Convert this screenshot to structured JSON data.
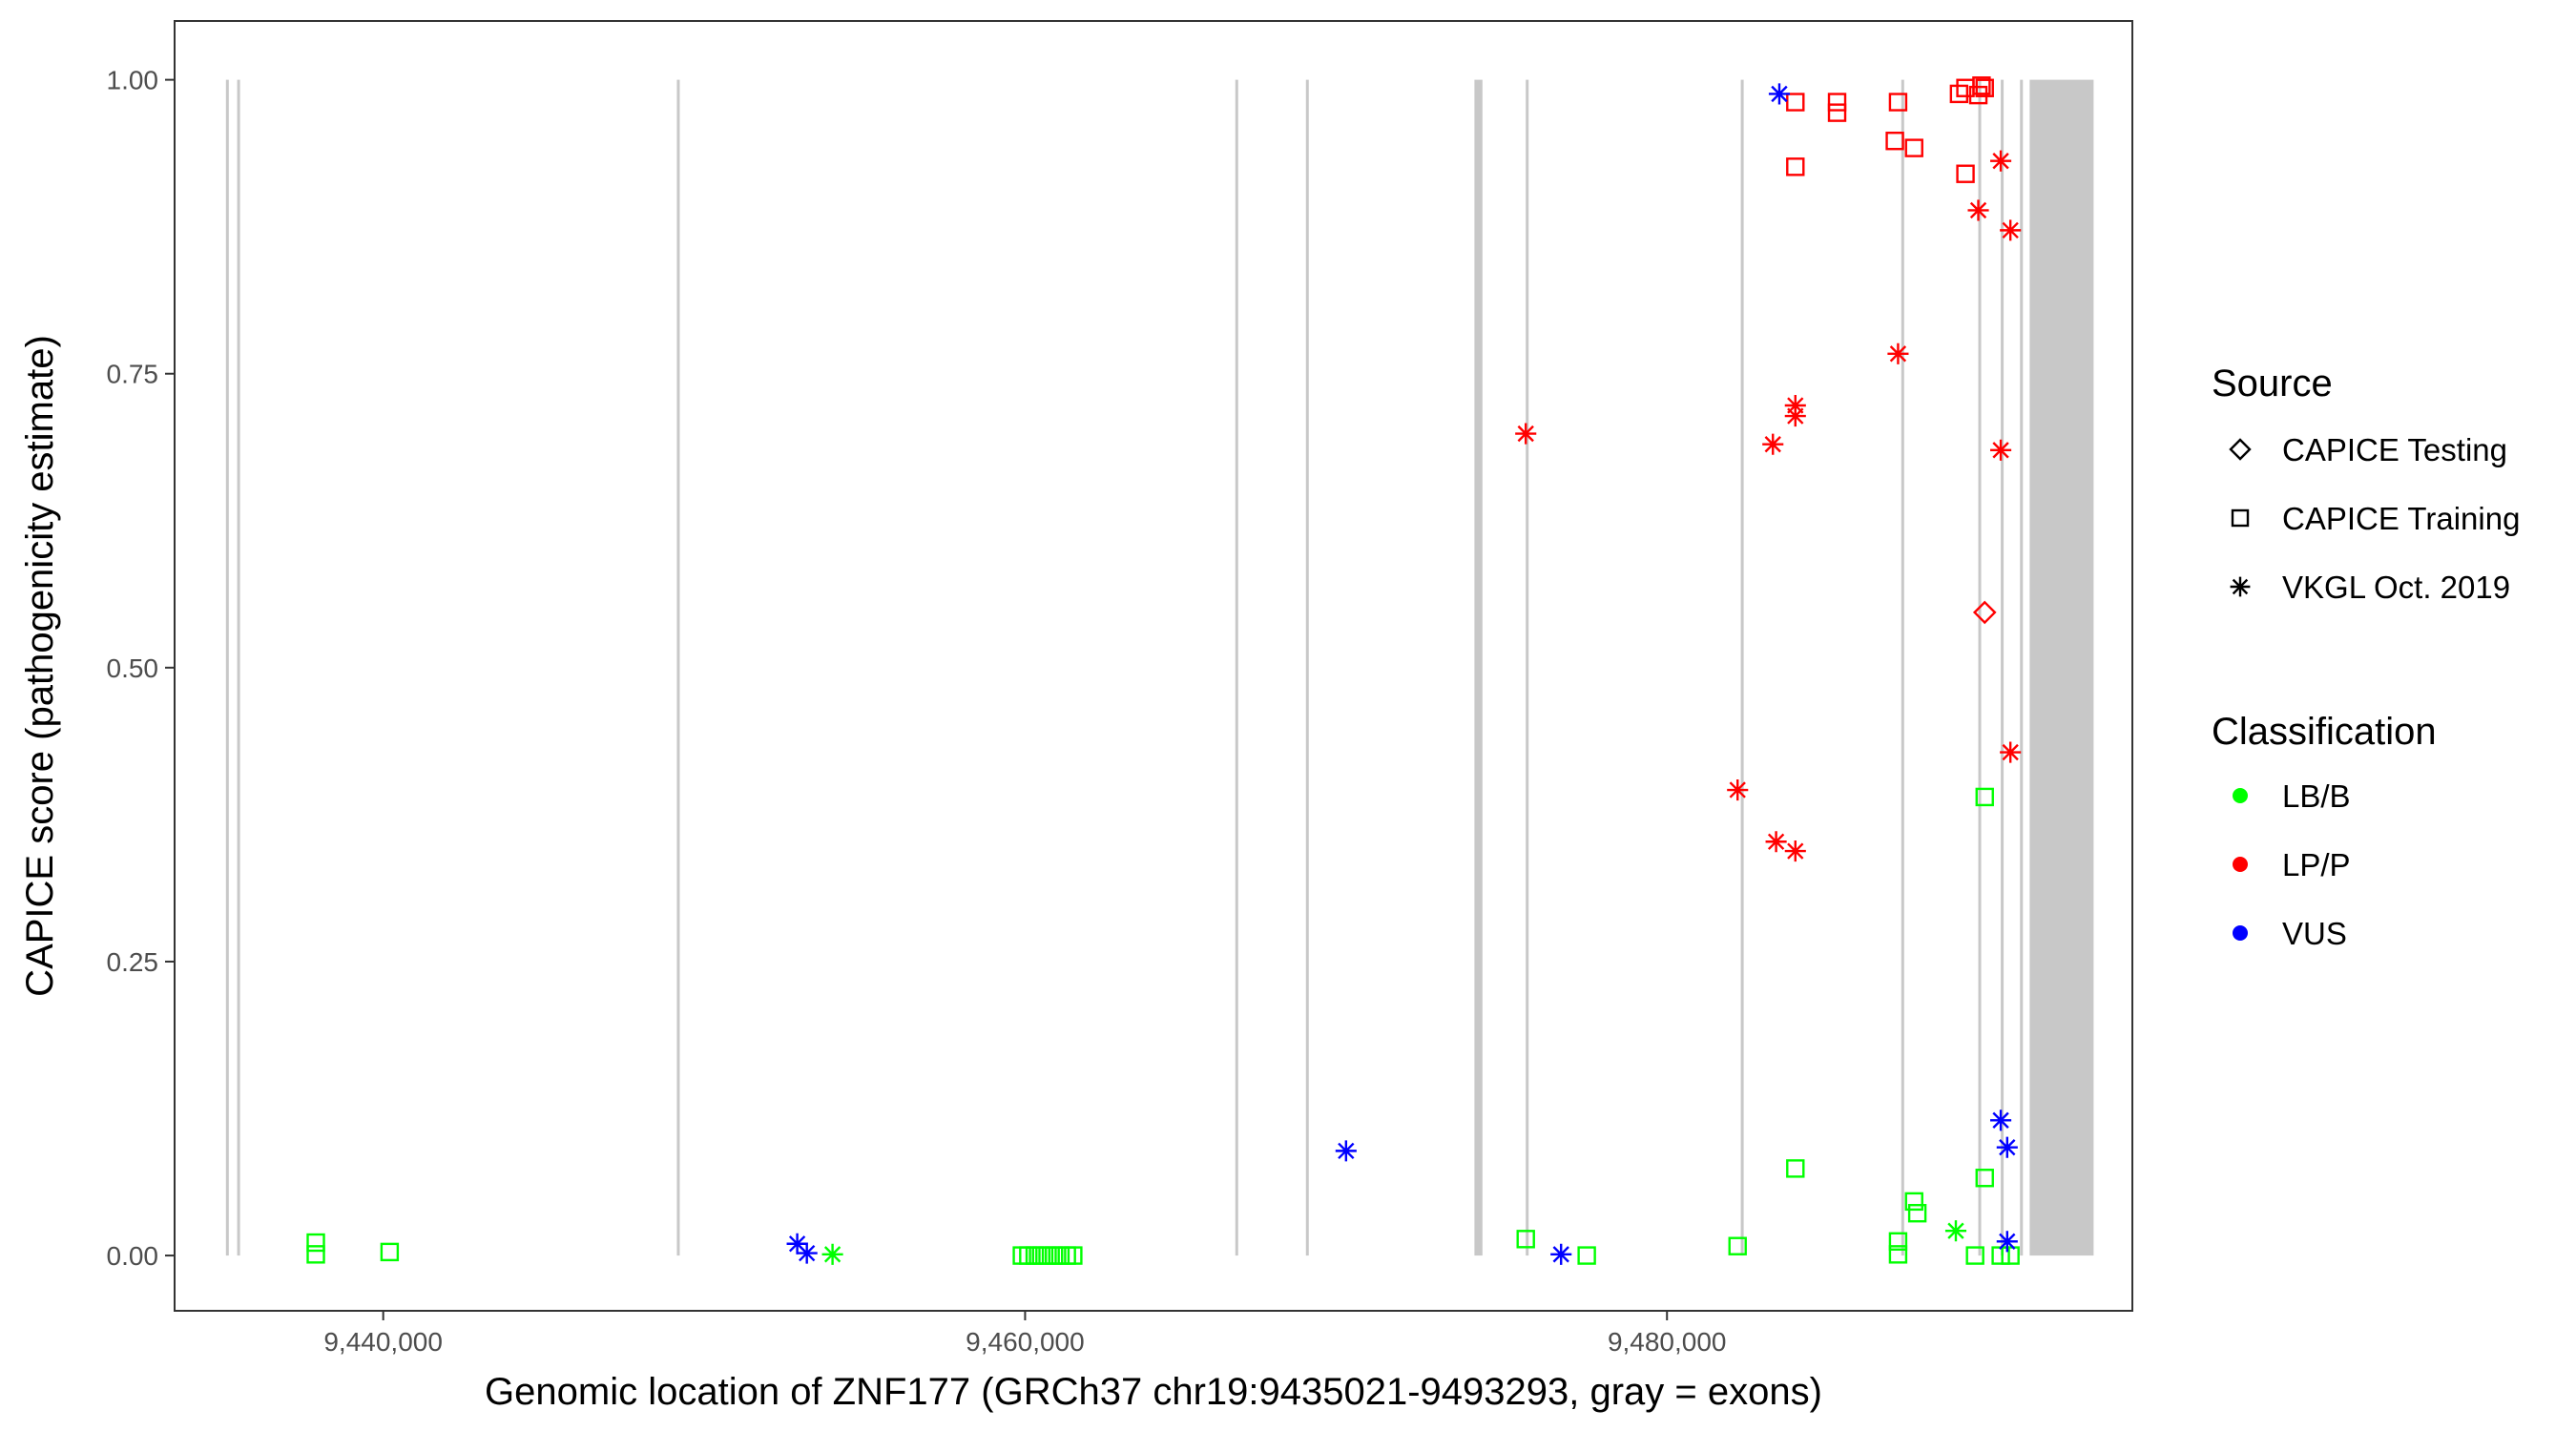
{
  "chart_data": {
    "type": "scatter",
    "title": "",
    "xlabel": "Genomic location of ZNF177 (GRCh37 chr19:9435021-9493293, gray = exons)",
    "ylabel": "CAPICE score (pathogenicity estimate)",
    "xlim": [
      9433500,
      9494500
    ],
    "ylim": [
      -0.047,
      1.05
    ],
    "x_ticks": [
      9440000,
      9460000,
      9480000
    ],
    "x_tick_labels": [
      "9,440,000",
      "9,460,000",
      "9,480,000"
    ],
    "y_ticks": [
      0,
      0.25,
      0.5,
      0.75,
      1.0
    ],
    "y_tick_labels": [
      "0.00",
      "0.25",
      "0.50",
      "0.75",
      "1.00"
    ],
    "grid": false,
    "exon_color": "#c8c8c8",
    "exons": [
      [
        9435100,
        9435160
      ],
      [
        9435450,
        9435510
      ],
      [
        9449150,
        9449210
      ],
      [
        9466550,
        9466610
      ],
      [
        9468750,
        9468810
      ],
      [
        9474000,
        9474250
      ],
      [
        9475600,
        9475660
      ],
      [
        9482300,
        9482360
      ],
      [
        9487300,
        9487360
      ],
      [
        9489700,
        9489760
      ],
      [
        9490400,
        9490460
      ],
      [
        9491000,
        9491060
      ],
      [
        9491300,
        9493293
      ]
    ],
    "source_legend": {
      "title": "Source",
      "position": "right",
      "entries": [
        {
          "label": "CAPICE Testing",
          "shape": "diamond"
        },
        {
          "label": "CAPICE Training",
          "shape": "square"
        },
        {
          "label": "VKGL Oct. 2019",
          "shape": "asterisk"
        }
      ]
    },
    "classification_legend": {
      "title": "Classification",
      "position": "right",
      "entries": [
        {
          "label": "LB/B",
          "color": "#00ff00"
        },
        {
          "label": "LP/P",
          "color": "#ff0000"
        },
        {
          "label": "VUS",
          "color": "#0000ff"
        }
      ]
    },
    "points": [
      {
        "x": 9437900,
        "y": 0.011,
        "source": "CAPICE Training",
        "classification": "LB/B"
      },
      {
        "x": 9437900,
        "y": 0.001,
        "source": "CAPICE Training",
        "classification": "LB/B"
      },
      {
        "x": 9440200,
        "y": 0.003,
        "source": "CAPICE Training",
        "classification": "LB/B"
      },
      {
        "x": 9459900,
        "y": 0.0,
        "source": "CAPICE Training",
        "classification": "LB/B"
      },
      {
        "x": 9460100,
        "y": 0.0,
        "source": "CAPICE Training",
        "classification": "LB/B"
      },
      {
        "x": 9460300,
        "y": 0.0,
        "source": "CAPICE Training",
        "classification": "LB/B"
      },
      {
        "x": 9460500,
        "y": 0.0,
        "source": "CAPICE Training",
        "classification": "LB/B"
      },
      {
        "x": 9460700,
        "y": 0.0,
        "source": "CAPICE Training",
        "classification": "LB/B"
      },
      {
        "x": 9460900,
        "y": 0.0,
        "source": "CAPICE Training",
        "classification": "LB/B"
      },
      {
        "x": 9461100,
        "y": 0.0,
        "source": "CAPICE Training",
        "classification": "LB/B"
      },
      {
        "x": 9461300,
        "y": 0.0,
        "source": "CAPICE Training",
        "classification": "LB/B"
      },
      {
        "x": 9461500,
        "y": 0.0,
        "source": "CAPICE Training",
        "classification": "LB/B"
      },
      {
        "x": 9475600,
        "y": 0.014,
        "source": "CAPICE Training",
        "classification": "LB/B"
      },
      {
        "x": 9477500,
        "y": 0.0,
        "source": "CAPICE Training",
        "classification": "LB/B"
      },
      {
        "x": 9482200,
        "y": 0.008,
        "source": "CAPICE Training",
        "classification": "LB/B"
      },
      {
        "x": 9484000,
        "y": 0.074,
        "source": "CAPICE Training",
        "classification": "LB/B"
      },
      {
        "x": 9487200,
        "y": 0.012,
        "source": "CAPICE Training",
        "classification": "LB/B"
      },
      {
        "x": 9487200,
        "y": 0.001,
        "source": "CAPICE Training",
        "classification": "LB/B"
      },
      {
        "x": 9487700,
        "y": 0.046,
        "source": "CAPICE Training",
        "classification": "LB/B"
      },
      {
        "x": 9487800,
        "y": 0.036,
        "source": "CAPICE Training",
        "classification": "LB/B"
      },
      {
        "x": 9489600,
        "y": 0.0,
        "source": "CAPICE Training",
        "classification": "LB/B"
      },
      {
        "x": 9489900,
        "y": 0.39,
        "source": "CAPICE Training",
        "classification": "LB/B"
      },
      {
        "x": 9489900,
        "y": 0.066,
        "source": "CAPICE Training",
        "classification": "LB/B"
      },
      {
        "x": 9490400,
        "y": 0.0,
        "source": "CAPICE Training",
        "classification": "LB/B"
      },
      {
        "x": 9490700,
        "y": 0.0,
        "source": "CAPICE Training",
        "classification": "LB/B"
      },
      {
        "x": 9454000,
        "y": 0.001,
        "source": "VKGL Oct. 2019",
        "classification": "LB/B"
      },
      {
        "x": 9489000,
        "y": 0.021,
        "source": "VKGL Oct. 2019",
        "classification": "LB/B"
      },
      {
        "x": 9484000,
        "y": 0.981,
        "source": "CAPICE Training",
        "classification": "LP/P"
      },
      {
        "x": 9484000,
        "y": 0.926,
        "source": "CAPICE Training",
        "classification": "LP/P"
      },
      {
        "x": 9485300,
        "y": 0.981,
        "source": "CAPICE Training",
        "classification": "LP/P"
      },
      {
        "x": 9485300,
        "y": 0.972,
        "source": "CAPICE Training",
        "classification": "LP/P"
      },
      {
        "x": 9487200,
        "y": 0.981,
        "source": "CAPICE Training",
        "classification": "LP/P"
      },
      {
        "x": 9487100,
        "y": 0.948,
        "source": "CAPICE Training",
        "classification": "LP/P"
      },
      {
        "x": 9487700,
        "y": 0.942,
        "source": "CAPICE Training",
        "classification": "LP/P"
      },
      {
        "x": 9489100,
        "y": 0.988,
        "source": "CAPICE Training",
        "classification": "LP/P"
      },
      {
        "x": 9489300,
        "y": 0.993,
        "source": "CAPICE Training",
        "classification": "LP/P"
      },
      {
        "x": 9489300,
        "y": 0.92,
        "source": "CAPICE Training",
        "classification": "LP/P"
      },
      {
        "x": 9489700,
        "y": 0.987,
        "source": "CAPICE Training",
        "classification": "LP/P"
      },
      {
        "x": 9489800,
        "y": 0.995,
        "source": "CAPICE Training",
        "classification": "LP/P"
      },
      {
        "x": 9489900,
        "y": 0.993,
        "source": "CAPICE Training",
        "classification": "LP/P"
      },
      {
        "x": 9489900,
        "y": 0.547,
        "source": "CAPICE Testing",
        "classification": "LP/P"
      },
      {
        "x": 9475600,
        "y": 0.699,
        "source": "VKGL Oct. 2019",
        "classification": "LP/P"
      },
      {
        "x": 9482200,
        "y": 0.396,
        "source": "VKGL Oct. 2019",
        "classification": "LP/P"
      },
      {
        "x": 9483300,
        "y": 0.69,
        "source": "VKGL Oct. 2019",
        "classification": "LP/P"
      },
      {
        "x": 9483400,
        "y": 0.352,
        "source": "VKGL Oct. 2019",
        "classification": "LP/P"
      },
      {
        "x": 9484000,
        "y": 0.723,
        "source": "VKGL Oct. 2019",
        "classification": "LP/P"
      },
      {
        "x": 9484000,
        "y": 0.714,
        "source": "VKGL Oct. 2019",
        "classification": "LP/P"
      },
      {
        "x": 9484000,
        "y": 0.344,
        "source": "VKGL Oct. 2019",
        "classification": "LP/P"
      },
      {
        "x": 9487200,
        "y": 0.767,
        "source": "VKGL Oct. 2019",
        "classification": "LP/P"
      },
      {
        "x": 9489700,
        "y": 0.889,
        "source": "VKGL Oct. 2019",
        "classification": "LP/P"
      },
      {
        "x": 9490400,
        "y": 0.931,
        "source": "VKGL Oct. 2019",
        "classification": "LP/P"
      },
      {
        "x": 9490700,
        "y": 0.872,
        "source": "VKGL Oct. 2019",
        "classification": "LP/P"
      },
      {
        "x": 9490400,
        "y": 0.685,
        "source": "VKGL Oct. 2019",
        "classification": "LP/P"
      },
      {
        "x": 9490700,
        "y": 0.428,
        "source": "VKGL Oct. 2019",
        "classification": "LP/P"
      },
      {
        "x": 9483500,
        "y": 0.988,
        "source": "VKGL Oct. 2019",
        "classification": "VUS"
      },
      {
        "x": 9452900,
        "y": 0.01,
        "source": "VKGL Oct. 2019",
        "classification": "VUS"
      },
      {
        "x": 9453200,
        "y": 0.002,
        "source": "VKGL Oct. 2019",
        "classification": "VUS"
      },
      {
        "x": 9470000,
        "y": 0.089,
        "source": "VKGL Oct. 2019",
        "classification": "VUS"
      },
      {
        "x": 9476700,
        "y": 0.001,
        "source": "VKGL Oct. 2019",
        "classification": "VUS"
      },
      {
        "x": 9490400,
        "y": 0.115,
        "source": "VKGL Oct. 2019",
        "classification": "VUS"
      },
      {
        "x": 9490600,
        "y": 0.092,
        "source": "VKGL Oct. 2019",
        "classification": "VUS"
      },
      {
        "x": 9490600,
        "y": 0.012,
        "source": "VKGL Oct. 2019",
        "classification": "VUS"
      }
    ]
  }
}
